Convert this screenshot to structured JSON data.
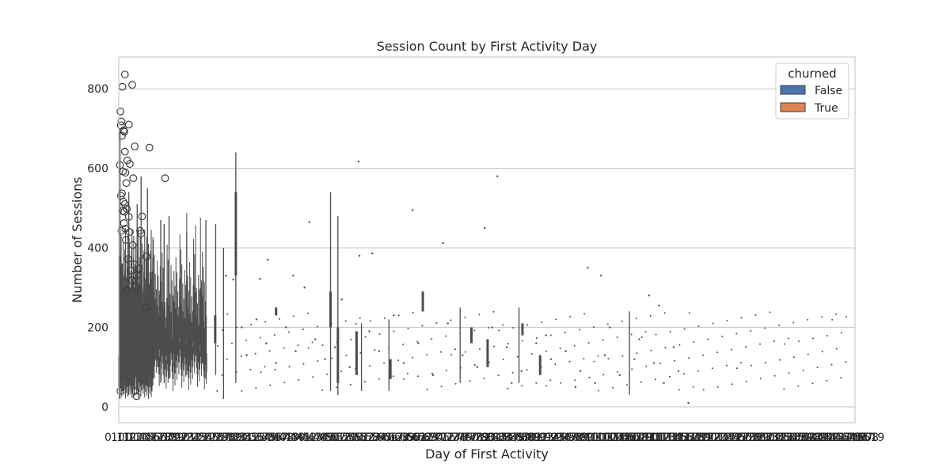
{
  "chart_data": {
    "type": "boxplot",
    "title": "Session Count by First Activity Day",
    "xlabel": "Day of First Activity",
    "ylabel": "Number of Sessions",
    "ylim": [
      -40,
      880
    ],
    "yticks": [
      0,
      200,
      400,
      600,
      800
    ],
    "grid": "y",
    "legend": {
      "title": "churned",
      "placement": "top-right",
      "entries": [
        {
          "label": "False",
          "color": "#4c72b0"
        },
        {
          "label": "True",
          "color": "#dd8452"
        }
      ]
    },
    "x_category_count": 1500,
    "x_tick_labels_overlapping": true,
    "x_tick_label_first": "0",
    "x_tick_label_last": "7",
    "box_color": "#4c4c4c",
    "outliers": [
      {
        "x": 7,
        "y": 805
      },
      {
        "x": 12,
        "y": 836
      },
      {
        "x": 27,
        "y": 810
      },
      {
        "x": 3,
        "y": 743
      },
      {
        "x": 5,
        "y": 718
      },
      {
        "x": 9,
        "y": 695
      },
      {
        "x": 11,
        "y": 692
      },
      {
        "x": 20,
        "y": 710
      },
      {
        "x": 4,
        "y": 708
      },
      {
        "x": 6,
        "y": 682
      },
      {
        "x": 32,
        "y": 655
      },
      {
        "x": 62,
        "y": 652
      },
      {
        "x": 12,
        "y": 642
      },
      {
        "x": 17,
        "y": 620
      },
      {
        "x": 22,
        "y": 611
      },
      {
        "x": 2,
        "y": 608
      },
      {
        "x": 8,
        "y": 592
      },
      {
        "x": 13,
        "y": 589
      },
      {
        "x": 29,
        "y": 575
      },
      {
        "x": 94,
        "y": 575
      },
      {
        "x": 15,
        "y": 563
      },
      {
        "x": 6,
        "y": 537
      },
      {
        "x": 4,
        "y": 531
      },
      {
        "x": 9,
        "y": 516
      },
      {
        "x": 12,
        "y": 510
      },
      {
        "x": 16,
        "y": 498
      },
      {
        "x": 8,
        "y": 493
      },
      {
        "x": 11,
        "y": 491
      },
      {
        "x": 20,
        "y": 478
      },
      {
        "x": 47,
        "y": 479
      },
      {
        "x": 10,
        "y": 462
      },
      {
        "x": 13,
        "y": 448
      },
      {
        "x": 5,
        "y": 443
      },
      {
        "x": 22,
        "y": 440
      },
      {
        "x": 43,
        "y": 443
      },
      {
        "x": 45,
        "y": 436
      },
      {
        "x": 14,
        "y": 420
      },
      {
        "x": 28,
        "y": 407
      },
      {
        "x": 56,
        "y": 378
      },
      {
        "x": 18,
        "y": 372
      },
      {
        "x": 31,
        "y": 358
      },
      {
        "x": 41,
        "y": 348
      },
      {
        "x": 24,
        "y": 343
      },
      {
        "x": 36,
        "y": 331
      },
      {
        "x": 26,
        "y": 318
      },
      {
        "x": 35,
        "y": 302
      },
      {
        "x": 16,
        "y": 292
      },
      {
        "x": 55,
        "y": 250
      },
      {
        "x": 33,
        "y": 40
      },
      {
        "x": 36,
        "y": 27
      },
      {
        "x": 3,
        "y": 40
      }
    ],
    "whiskers": [
      {
        "x": 2,
        "low": 20,
        "high": 700
      },
      {
        "x": 20,
        "low": 30,
        "high": 540
      },
      {
        "x": 37,
        "low": 40,
        "high": 510
      },
      {
        "x": 45,
        "low": 50,
        "high": 580
      },
      {
        "x": 58,
        "low": 60,
        "high": 550
      },
      {
        "x": 85,
        "low": 60,
        "high": 470
      },
      {
        "x": 92,
        "low": 60,
        "high": 460
      },
      {
        "x": 102,
        "low": 70,
        "high": 480
      },
      {
        "x": 138,
        "low": 80,
        "high": 440
      },
      {
        "x": 177,
        "low": 70,
        "high": 470
      },
      {
        "x": 197,
        "low": 80,
        "high": 460
      },
      {
        "x": 238,
        "low": 60,
        "high": 640
      },
      {
        "x": 213,
        "low": 20,
        "high": 400
      },
      {
        "x": 431,
        "low": 40,
        "high": 540
      },
      {
        "x": 446,
        "low": 30,
        "high": 480
      },
      {
        "x": 494,
        "low": 40,
        "high": 210
      },
      {
        "x": 550,
        "low": 40,
        "high": 220
      },
      {
        "x": 695,
        "low": 60,
        "high": 250
      },
      {
        "x": 815,
        "low": 60,
        "high": 250
      },
      {
        "x": 1040,
        "low": 30,
        "high": 240
      }
    ],
    "boxes": [
      {
        "x": 2,
        "q1": 60,
        "q3": 380
      },
      {
        "x": 7,
        "q1": 40,
        "q3": 360
      },
      {
        "x": 12,
        "q1": 70,
        "q3": 330
      },
      {
        "x": 18,
        "q1": 50,
        "q3": 350
      },
      {
        "x": 24,
        "q1": 80,
        "q3": 300
      },
      {
        "x": 30,
        "q1": 90,
        "q3": 280
      },
      {
        "x": 38,
        "q1": 70,
        "q3": 310
      },
      {
        "x": 44,
        "q1": 60,
        "q3": 300
      },
      {
        "x": 52,
        "q1": 100,
        "q3": 260
      },
      {
        "x": 60,
        "q1": 90,
        "q3": 280
      },
      {
        "x": 66,
        "q1": 110,
        "q3": 240
      },
      {
        "x": 72,
        "q1": 120,
        "q3": 200
      },
      {
        "x": 80,
        "q1": 100,
        "q3": 230
      },
      {
        "x": 95,
        "q1": 130,
        "q3": 200
      },
      {
        "x": 112,
        "q1": 140,
        "q3": 210
      },
      {
        "x": 140,
        "q1": 120,
        "q3": 180
      },
      {
        "x": 158,
        "q1": 130,
        "q3": 190
      },
      {
        "x": 172,
        "q1": 110,
        "q3": 170
      },
      {
        "x": 196,
        "q1": 160,
        "q3": 230
      },
      {
        "x": 238,
        "q1": 330,
        "q3": 540
      },
      {
        "x": 320,
        "q1": 230,
        "q3": 250
      },
      {
        "x": 431,
        "q1": 200,
        "q3": 290
      },
      {
        "x": 446,
        "q1": 60,
        "q3": 200
      },
      {
        "x": 484,
        "q1": 80,
        "q3": 190
      },
      {
        "x": 553,
        "q1": 70,
        "q3": 120
      },
      {
        "x": 619,
        "q1": 240,
        "q3": 290
      },
      {
        "x": 718,
        "q1": 160,
        "q3": 200
      },
      {
        "x": 751,
        "q1": 100,
        "q3": 170
      },
      {
        "x": 822,
        "q1": 180,
        "q3": 210
      },
      {
        "x": 858,
        "q1": 80,
        "q3": 130
      }
    ],
    "scatter_points": [
      {
        "x": 218,
        "y": 330
      },
      {
        "x": 233,
        "y": 320
      },
      {
        "x": 287,
        "y": 322
      },
      {
        "x": 303,
        "y": 370
      },
      {
        "x": 355,
        "y": 330
      },
      {
        "x": 378,
        "y": 300
      },
      {
        "x": 388,
        "y": 465
      },
      {
        "x": 454,
        "y": 270
      },
      {
        "x": 490,
        "y": 380
      },
      {
        "x": 516,
        "y": 386
      },
      {
        "x": 488,
        "y": 617
      },
      {
        "x": 598,
        "y": 495
      },
      {
        "x": 660,
        "y": 412
      },
      {
        "x": 771,
        "y": 580
      },
      {
        "x": 745,
        "y": 450
      },
      {
        "x": 955,
        "y": 350
      },
      {
        "x": 982,
        "y": 330
      },
      {
        "x": 1080,
        "y": 280
      },
      {
        "x": 1100,
        "y": 255
      },
      {
        "x": 1160,
        "y": 10
      },
      {
        "x": 1130,
        "y": 150
      },
      {
        "x": 1090,
        "y": 110
      },
      {
        "x": 1050,
        "y": 120
      },
      {
        "x": 1020,
        "y": 80
      },
      {
        "x": 990,
        "y": 130
      },
      {
        "x": 970,
        "y": 60
      },
      {
        "x": 940,
        "y": 90
      },
      {
        "x": 910,
        "y": 140
      },
      {
        "x": 880,
        "y": 120
      },
      {
        "x": 850,
        "y": 160
      },
      {
        "x": 820,
        "y": 90
      },
      {
        "x": 790,
        "y": 150
      },
      {
        "x": 760,
        "y": 200
      },
      {
        "x": 730,
        "y": 100
      },
      {
        "x": 700,
        "y": 130
      },
      {
        "x": 670,
        "y": 210
      },
      {
        "x": 640,
        "y": 80
      },
      {
        "x": 610,
        "y": 160
      },
      {
        "x": 580,
        "y": 110
      },
      {
        "x": 560,
        "y": 230
      },
      {
        "x": 530,
        "y": 140
      },
      {
        "x": 510,
        "y": 190
      },
      {
        "x": 470,
        "y": 100
      },
      {
        "x": 440,
        "y": 150
      },
      {
        "x": 420,
        "y": 120
      },
      {
        "x": 400,
        "y": 170
      },
      {
        "x": 360,
        "y": 140
      },
      {
        "x": 340,
        "y": 200
      },
      {
        "x": 320,
        "y": 110
      },
      {
        "x": 300,
        "y": 160
      },
      {
        "x": 280,
        "y": 220
      },
      {
        "x": 260,
        "y": 130
      },
      {
        "x": 250,
        "y": 200
      },
      {
        "x": 1110,
        "y": 60
      },
      {
        "x": 1140,
        "y": 90
      },
      {
        "x": 1060,
        "y": 170
      },
      {
        "x": 1000,
        "y": 200
      },
      {
        "x": 930,
        "y": 50
      },
      {
        "x": 870,
        "y": 180
      },
      {
        "x": 800,
        "y": 60
      }
    ]
  }
}
